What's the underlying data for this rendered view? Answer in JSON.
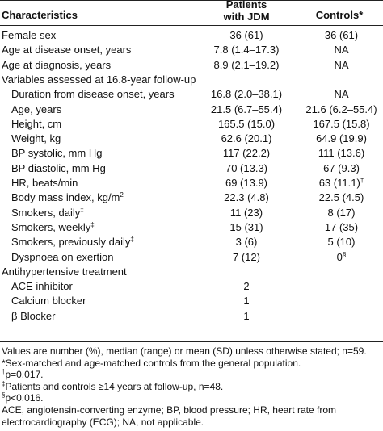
{
  "table": {
    "header": [
      "Characteristics",
      "Patients with JDM",
      "Controls*"
    ],
    "body": [
      {
        "label": "Female sex",
        "jdm": "36 (61)",
        "controls": "36 (61)"
      },
      {
        "label": "Age at disease onset, years",
        "jdm": "7.8 (1.4–17.3)",
        "controls": "NA"
      },
      {
        "label": "Age at diagnosis, years",
        "jdm": "8.9 (2.1–19.2)",
        "controls": "NA"
      },
      {
        "label": "Variables assessed at 16.8-year follow-up",
        "rows": [
          {
            "label": "Duration from disease onset, years",
            "jdm": "16.8 (2.0–38.1)",
            "controls": "NA"
          },
          {
            "label": "Age, years",
            "jdm": "21.5 (6.7–55.4)",
            "controls": "21.6 (6.2–55.4)"
          },
          {
            "label": "Height, cm",
            "jdm": "165.5 (15.0)",
            "controls": "167.5 (15.8)"
          },
          {
            "label": "Weight, kg",
            "jdm": "62.6 (20.1)",
            "controls": "64.9 (19.9)"
          },
          {
            "label": "BP systolic, mm Hg",
            "jdm": "117 (22.2)",
            "controls": "111 (13.6)"
          },
          {
            "label": "BP diastolic, mm Hg",
            "jdm": "70 (13.3)",
            "controls": "67 (9.3)"
          },
          {
            "label": "HR, beats/min",
            "jdm": "69 (13.9)",
            "controls": "63 (11.1)",
            "controls_sup": "†"
          },
          {
            "label": "Body mass index, kg/m",
            "label_sup": "2",
            "jdm": "22.3 (4.8)",
            "controls": "22.5 (4.5)"
          },
          {
            "label": "Smokers, daily",
            "label_sup": "‡",
            "jdm": "11 (23)",
            "controls": "8 (17)"
          },
          {
            "label": "Smokers, weekly",
            "label_sup": "‡",
            "jdm": "15 (31)",
            "controls": "17 (35)"
          },
          {
            "label": "Smokers, previously daily",
            "label_sup": "‡",
            "jdm": "3 (6)",
            "controls": "5 (10)"
          },
          {
            "label": "Dyspnoea on exertion",
            "jdm": "7 (12)",
            "controls": "0",
            "controls_sup": "§"
          }
        ]
      },
      {
        "label": "Antihypertensive treatment",
        "rows": [
          {
            "label": "ACE inhibitor",
            "jdm": "2"
          },
          {
            "label": "Calcium blocker",
            "jdm": "1"
          },
          {
            "label": "β Blocker",
            "jdm": "1"
          }
        ]
      }
    ],
    "footnotes": [
      {
        "text": "Values are number (%), median (range) or mean (SD) unless otherwise stated; n=59."
      },
      {
        "text": "*Sex-matched and age-matched controls from the general population."
      },
      {
        "sup": "†",
        "text": "p=0.017."
      },
      {
        "sup": "‡",
        "text": "Patients and controls ≥14 years at follow-up, n=48."
      },
      {
        "sup": "§",
        "text": "p<0.016."
      },
      {
        "text": "ACE, angiotensin-converting enzyme; BP, blood pressure; HR, heart rate from electrocardiography (ECG); NA, not applicable."
      }
    ]
  }
}
